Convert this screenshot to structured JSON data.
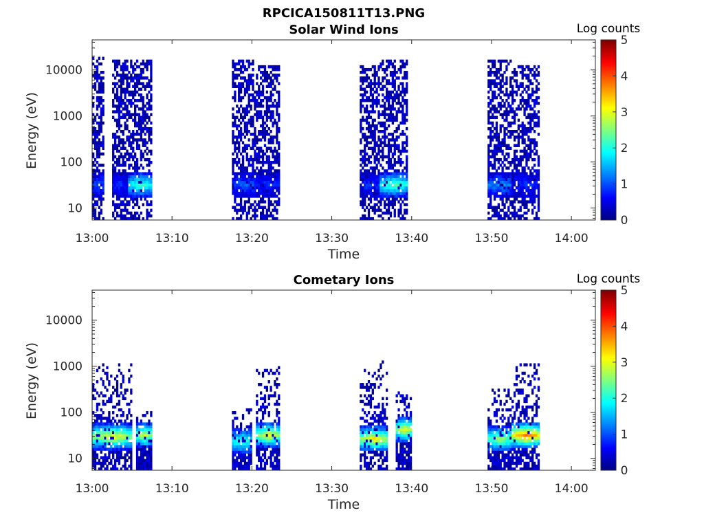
{
  "figure": {
    "title": "RPCICA150811T13.PNG"
  },
  "chart_data": [
    {
      "type": "heatmap",
      "title": "Solar Wind Ions",
      "xlabel": "Time",
      "ylabel": "Energy (eV)",
      "xlim": [
        "13:00",
        "14:03"
      ],
      "xticks": [
        "13:00",
        "13:10",
        "13:20",
        "13:30",
        "13:40",
        "13:50",
        "14:00"
      ],
      "yscale": "log",
      "ylim": [
        5.5,
        45000
      ],
      "yticks": [
        "10",
        "100",
        "1000",
        "10000"
      ],
      "colorbar": {
        "label": "Log counts",
        "min": 0,
        "max": 5,
        "ticks": [
          "0",
          "1",
          "2",
          "3",
          "4",
          "5"
        ],
        "colormap": "jet"
      },
      "bursts": [
        {
          "start": "13:00",
          "end": "13:01.5",
          "emax": 18000,
          "core_energy": 30,
          "core_level": 0.8
        },
        {
          "start": "13:02.5",
          "end": "13:04.5",
          "emax": 15000,
          "core_energy": 30,
          "core_level": 0.6
        },
        {
          "start": "13:04.5",
          "end": "13:07.5",
          "emax": 15000,
          "core_energy": 30,
          "core_level": 2.1
        },
        {
          "start": "13:17.5",
          "end": "13:20.5",
          "emax": 15000,
          "core_energy": 30,
          "core_level": 0.9
        },
        {
          "start": "13:20.5",
          "end": "13:23.5",
          "emax": 12000,
          "core_energy": 30,
          "core_level": 0.6
        },
        {
          "start": "13:33.5",
          "end": "13:36",
          "emax": 12000,
          "core_energy": 30,
          "core_level": 0.7
        },
        {
          "start": "13:36",
          "end": "13:39.5",
          "emax": 15000,
          "core_energy": 30,
          "core_level": 2.2
        },
        {
          "start": "13:49.5",
          "end": "13:52.5",
          "emax": 15000,
          "core_energy": 30,
          "core_level": 1.2
        },
        {
          "start": "13:52.5",
          "end": "13:56",
          "emax": 12000,
          "core_energy": 30,
          "core_level": 0.6
        }
      ]
    },
    {
      "type": "heatmap",
      "title": "Cometary Ions",
      "xlabel": "Time",
      "ylabel": "Energy (eV)",
      "xlim": [
        "13:00",
        "14:03"
      ],
      "xticks": [
        "13:00",
        "13:10",
        "13:20",
        "13:30",
        "13:40",
        "13:50",
        "14:00"
      ],
      "yscale": "log",
      "ylim": [
        5.5,
        45000
      ],
      "yticks": [
        "10",
        "100",
        "1000",
        "10000"
      ],
      "colorbar": {
        "label": "Log counts",
        "min": 0,
        "max": 5,
        "ticks": [
          "0",
          "1",
          "2",
          "3",
          "4",
          "5"
        ],
        "colormap": "jet"
      },
      "bursts": [
        {
          "start": "13:00",
          "end": "13:05",
          "emax": 1100,
          "core_energy": 28,
          "core_level": 3.0
        },
        {
          "start": "13:05.5",
          "end": "13:07.5",
          "emax": 100,
          "core_energy": 30,
          "core_level": 2.8
        },
        {
          "start": "13:17.5",
          "end": "13:20",
          "emax": 120,
          "core_energy": 22,
          "core_level": 2.2
        },
        {
          "start": "13:20.5",
          "end": "13:23.5",
          "emax": 1000,
          "core_energy": 30,
          "core_level": 3.0
        },
        {
          "start": "13:33.5",
          "end": "13:37",
          "emax": 1200,
          "core_energy": 25,
          "core_level": 3.1
        },
        {
          "start": "13:38",
          "end": "13:40",
          "emax": 300,
          "core_energy": 40,
          "core_level": 3.0
        },
        {
          "start": "13:49.5",
          "end": "13:52.5",
          "emax": 300,
          "core_energy": 25,
          "core_level": 2.6
        },
        {
          "start": "13:52.5",
          "end": "13:56",
          "emax": 1100,
          "core_energy": 30,
          "core_level": 3.8
        }
      ]
    }
  ]
}
